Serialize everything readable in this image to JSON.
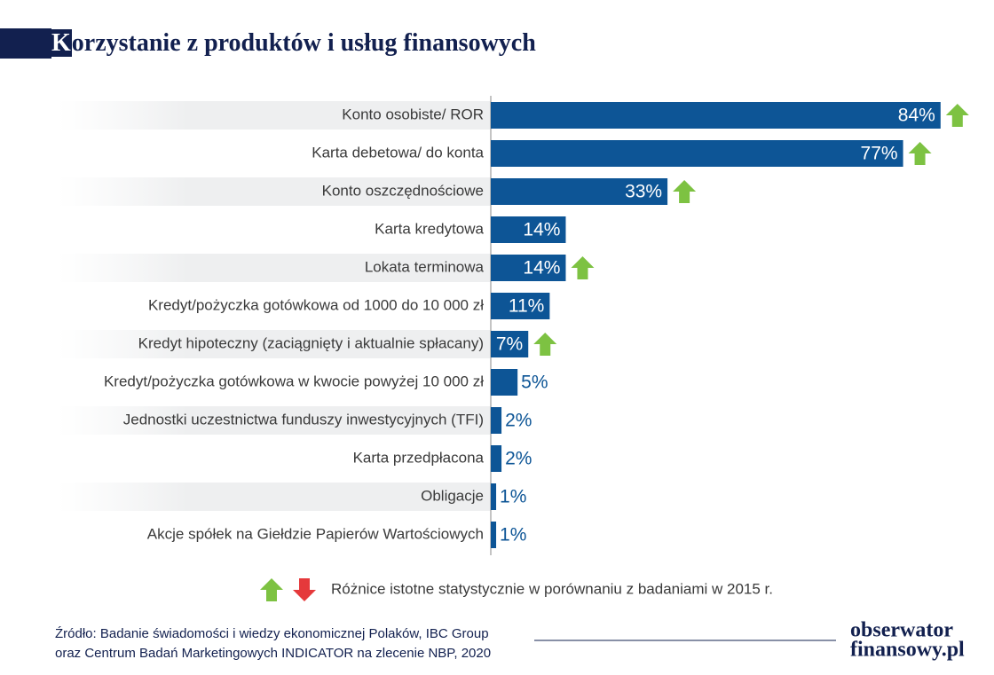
{
  "chart_data": {
    "type": "bar",
    "orientation": "horizontal",
    "title": "Korzystanie z produktów i usług finansowych",
    "categories": [
      "Konto osobiste/ ROR",
      "Karta debetowa/ do konta",
      "Konto oszczędnościowe",
      "Karta kredytowa",
      "Lokata terminowa",
      "Kredyt/pożyczka gotówkowa od 1000 do 10 000 zł",
      "Kredyt hipoteczny (zaciągnięty i aktualnie spłacany)",
      "Kredyt/pożyczka gotówkowa w kwocie powyżej 10 000 zł",
      "Jednostki uczestnictwa funduszy inwestycyjnych (TFI)",
      "Karta przedpłacona",
      "Obligacje",
      "Akcje spółek na Giełdzie Papierów Wartościowych"
    ],
    "values": [
      84,
      77,
      33,
      14,
      14,
      11,
      7,
      5,
      2,
      2,
      1,
      1
    ],
    "value_labels": [
      "84%",
      "77%",
      "33%",
      "14%",
      "14%",
      "11%",
      "7%",
      "5%",
      "2%",
      "2%",
      "1%",
      "1%"
    ],
    "color": "#0d5596",
    "changes": [
      "up",
      "up",
      "up",
      null,
      "up",
      null,
      "up",
      null,
      null,
      null,
      null,
      null
    ],
    "change_colors": {
      "up": "#7dc242",
      "down": "#e5393b"
    },
    "legend_text": "Różnice istotne statystycznie w porównaniu z badaniami w 2015 r.",
    "xlim": [
      0,
      90
    ]
  },
  "source": [
    "Źródło: Badanie świadomości i wiedzy ekonomicznej Polaków, IBC Group",
    "oraz Centrum Badań Marketingowych INDICATOR na zlecenie NBP, 2020"
  ],
  "logo": [
    "obserwator",
    "finansowy.pl"
  ]
}
